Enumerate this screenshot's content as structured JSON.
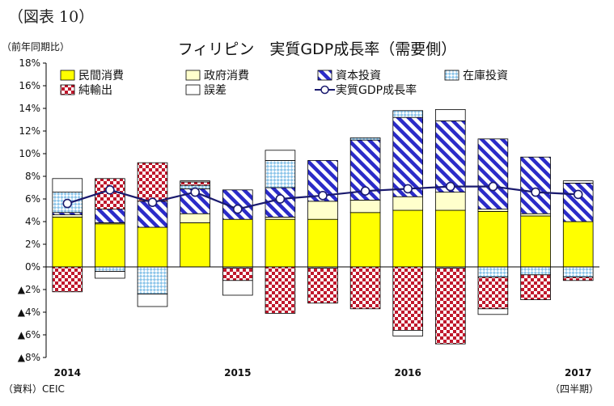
{
  "figure_label": "（図表 10）",
  "chart_data": {
    "type": "bar",
    "stacked": true,
    "title": "フィリピン　実質GDP成長率（需要側）",
    "ylabel": "（前年同期比）",
    "xlabel": "（四半期）",
    "source": "（資料）CEIC",
    "ylim": [
      -8,
      18
    ],
    "yticks": [
      {
        "value": 18,
        "label": "18%"
      },
      {
        "value": 16,
        "label": "16%"
      },
      {
        "value": 14,
        "label": "14%"
      },
      {
        "value": 12,
        "label": "12%"
      },
      {
        "value": 10,
        "label": "10%"
      },
      {
        "value": 8,
        "label": "8%"
      },
      {
        "value": 6,
        "label": "6%"
      },
      {
        "value": 4,
        "label": "4%"
      },
      {
        "value": 2,
        "label": "2%"
      },
      {
        "value": 0,
        "label": "0%"
      },
      {
        "value": -2,
        "label": "▲2%"
      },
      {
        "value": -4,
        "label": "▲4%"
      },
      {
        "value": -6,
        "label": "▲6%"
      },
      {
        "value": -8,
        "label": "▲8%"
      }
    ],
    "categories": [
      "2014Q1",
      "2014Q2",
      "2014Q3",
      "2014Q4",
      "2015Q1",
      "2015Q2",
      "2015Q3",
      "2015Q4",
      "2016Q1",
      "2016Q2",
      "2016Q3",
      "2016Q4",
      "2017Q1"
    ],
    "x_tick_labels": [
      {
        "index": 0,
        "label": "2014"
      },
      {
        "index": 4,
        "label": "2015"
      },
      {
        "index": 8,
        "label": "2016"
      },
      {
        "index": 12,
        "label": "2017"
      }
    ],
    "grid": false,
    "legend_position": "top",
    "series": [
      {
        "name": "民間消費",
        "key": "consumption",
        "color": "#ffff00",
        "pattern": "solid",
        "values": [
          4.4,
          3.8,
          3.5,
          3.9,
          4.2,
          4.2,
          4.2,
          4.8,
          5.0,
          5.0,
          4.9,
          4.5,
          4.0
        ]
      },
      {
        "name": "政府消費",
        "key": "government",
        "color": "#ffffcc",
        "pattern": "solid",
        "values": [
          0.2,
          0.1,
          0.0,
          0.8,
          0.0,
          0.2,
          1.6,
          1.1,
          1.2,
          1.6,
          0.2,
          0.2,
          0.0
        ]
      },
      {
        "name": "資本投資",
        "key": "capital",
        "color": "#2b2bc8",
        "pattern": "diagonal",
        "values": [
          0.2,
          1.2,
          2.3,
          2.2,
          2.6,
          2.6,
          3.6,
          5.3,
          7.0,
          6.3,
          6.2,
          5.0,
          3.4
        ]
      },
      {
        "name": "在庫投資",
        "key": "inventory",
        "color": "#8ec6ea",
        "pattern": "diamond",
        "values": [
          1.8,
          -0.4,
          -2.4,
          0.3,
          -0.1,
          2.4,
          -0.1,
          0.2,
          0.6,
          -0.1,
          -0.9,
          -0.7,
          -0.9
        ]
      },
      {
        "name": "純輸出",
        "key": "netexports",
        "color": "#c0182c",
        "pattern": "checker",
        "values": [
          -2.2,
          2.7,
          3.4,
          0.3,
          -1.1,
          -4.1,
          -3.1,
          -3.7,
          -5.6,
          -6.7,
          -2.8,
          -2.2,
          -0.3
        ]
      },
      {
        "name": "誤差",
        "key": "error",
        "color": "#ffffff",
        "pattern": "solid",
        "values": [
          1.2,
          -0.6,
          -1.1,
          0.1,
          -1.3,
          0.9,
          0.0,
          0.0,
          -0.5,
          1.0,
          -0.5,
          0.0,
          0.2
        ]
      }
    ],
    "line_series": {
      "name": "実質GDP成長率",
      "color": "#1a1a6e",
      "values": [
        5.6,
        6.8,
        5.7,
        6.6,
        5.1,
        6.0,
        6.3,
        6.7,
        6.9,
        7.1,
        7.1,
        6.6,
        6.4
      ]
    }
  }
}
